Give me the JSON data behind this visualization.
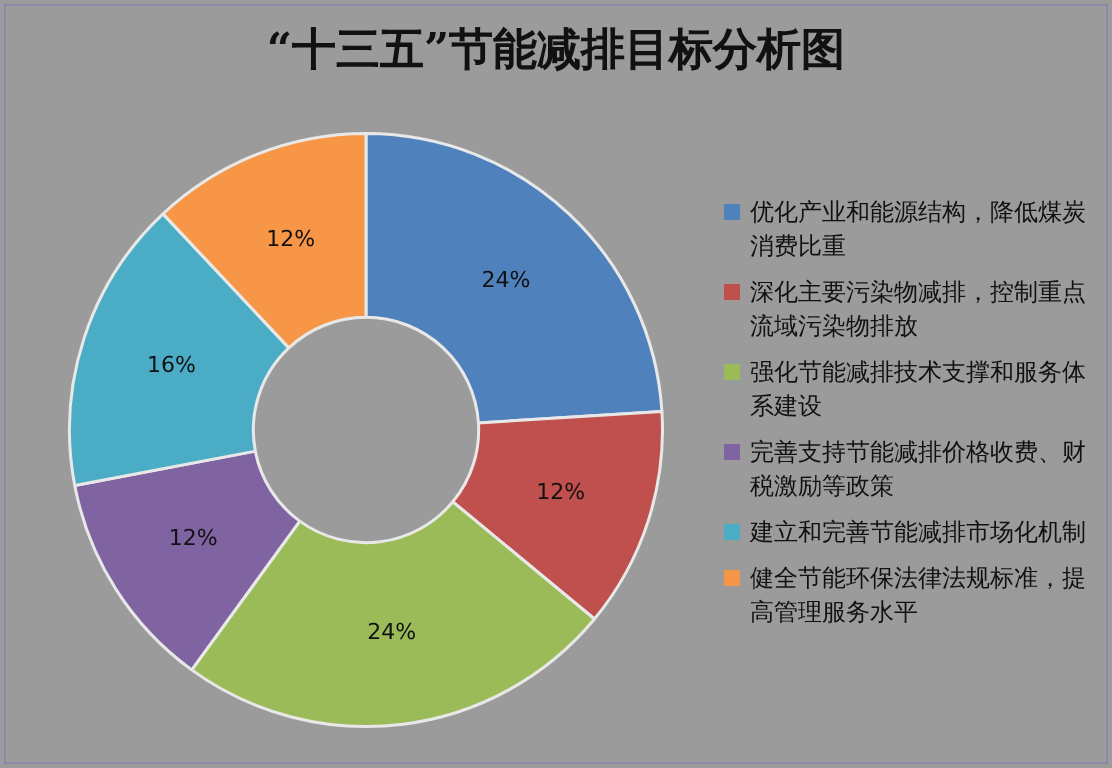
{
  "chart_data": {
    "type": "donut",
    "title": "“十三五”节能减排目标分析图",
    "categories": [
      "优化产业和能源结构，降低煤炭消费比重",
      "深化主要污染物减排，控制重点流域污染物排放",
      "强化节能减排技术支撑和服务体系建设",
      "完善支持节能减排价格收费、财税激励等政策",
      "建立和完善节能减排市场化机制",
      "健全节能环保法律法规标准，提高管理服务水平"
    ],
    "values": [
      24,
      12,
      24,
      12,
      16,
      12
    ],
    "colors": [
      "#4f81bd",
      "#c0504d",
      "#9bbb59",
      "#8064a2",
      "#4bacc6",
      "#f79646"
    ],
    "value_labels": [
      "24%",
      "12%",
      "24%",
      "12%",
      "16%",
      "12%"
    ],
    "legend": "right"
  }
}
